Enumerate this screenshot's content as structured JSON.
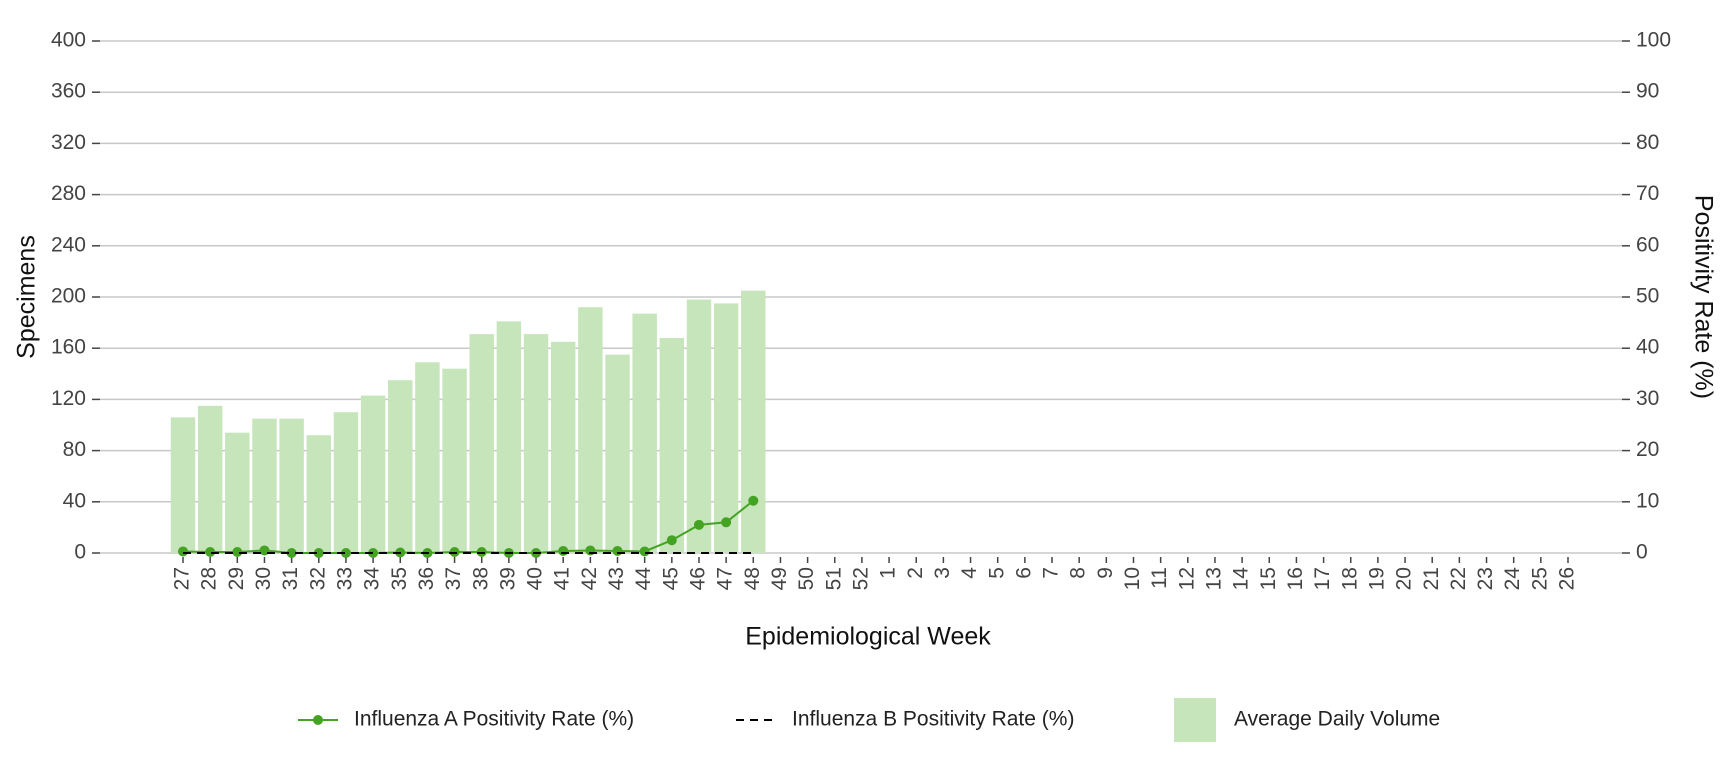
{
  "chart_data": {
    "type": "bar",
    "x_label": "Epidemiological Week",
    "y_label": "Specimens",
    "y2_label": "Positivity Rate (%)",
    "categories": [
      "27",
      "28",
      "29",
      "30",
      "31",
      "32",
      "33",
      "34",
      "35",
      "36",
      "37",
      "38",
      "39",
      "40",
      "41",
      "42",
      "43",
      "44",
      "45",
      "46",
      "47",
      "48",
      "49",
      "50",
      "51",
      "52",
      "1",
      "2",
      "3",
      "4",
      "5",
      "6",
      "7",
      "8",
      "9",
      "10",
      "11",
      "12",
      "13",
      "14",
      "15",
      "16",
      "17",
      "18",
      "19",
      "20",
      "21",
      "22",
      "23",
      "24",
      "25",
      "26"
    ],
    "series": [
      {
        "name": "Influenza A Positivity Rate (%)",
        "type": "line",
        "axis": "y2",
        "color": "#44a322",
        "values": [
          0.3,
          0.2,
          0.2,
          0.5,
          0,
          0,
          0,
          0,
          0.1,
          0,
          0.2,
          0.2,
          0,
          0,
          0.4,
          0.5,
          0.4,
          0.3,
          2.5,
          5.5,
          6,
          10.2,
          null,
          null,
          null,
          null,
          null,
          null,
          null,
          null,
          null,
          null,
          null,
          null,
          null,
          null,
          null,
          null,
          null,
          null,
          null,
          null,
          null,
          null,
          null,
          null,
          null,
          null,
          null,
          null,
          null,
          null
        ]
      },
      {
        "name": "Influenza B Positivity Rate (%)",
        "type": "line",
        "axis": "y2",
        "color": "#000000",
        "dashed": true,
        "values": [
          0,
          0,
          0,
          0,
          0,
          0,
          0,
          0,
          0,
          0,
          0,
          0,
          0,
          0,
          0,
          0,
          0,
          0,
          0,
          0,
          0,
          0,
          null,
          null,
          null,
          null,
          null,
          null,
          null,
          null,
          null,
          null,
          null,
          null,
          null,
          null,
          null,
          null,
          null,
          null,
          null,
          null,
          null,
          null,
          null,
          null,
          null,
          null,
          null,
          null,
          null,
          null
        ]
      },
      {
        "name": "Average Daily Volume",
        "type": "bar",
        "color": "#c6e5bb",
        "values": [
          106,
          115,
          94,
          105,
          105,
          92,
          110,
          123,
          135,
          149,
          144,
          171,
          181,
          171,
          165,
          192,
          155,
          187,
          168,
          198,
          195,
          205,
          null,
          null,
          null,
          null,
          null,
          null,
          null,
          null,
          null,
          null,
          null,
          null,
          null,
          null,
          null,
          null,
          null,
          null,
          null,
          null,
          null,
          null,
          null,
          null,
          null,
          null,
          null,
          null,
          null,
          null
        ]
      }
    ],
    "ylim": [
      0,
      400
    ],
    "yticks": [
      0,
      40,
      80,
      120,
      160,
      200,
      240,
      280,
      320,
      360,
      400
    ],
    "y2lim": [
      0,
      100
    ],
    "y2ticks": [
      0,
      10,
      20,
      30,
      40,
      50,
      60,
      70,
      80,
      90,
      100
    ],
    "grid": true,
    "legend": "bottom"
  }
}
